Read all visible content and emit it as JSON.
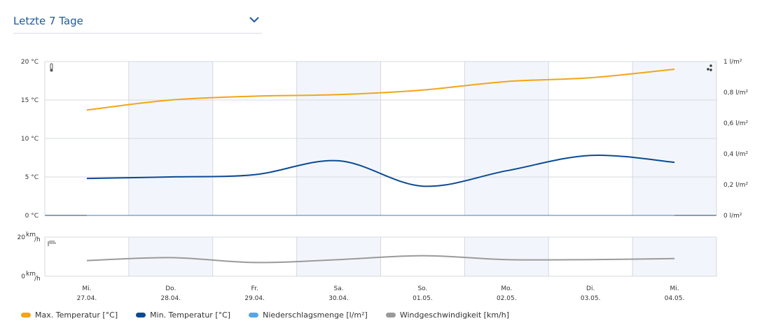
{
  "period_selector": {
    "label": "Letzte 7 Tage",
    "icon": "chevron-down-icon"
  },
  "colors": {
    "max_temp": "#f2a517",
    "min_temp": "#0b4a93",
    "precip": "#58a6e6",
    "wind": "#9a9a9a",
    "band": "#f2f6fc",
    "grid": "#d5d8dd",
    "zero_line": "#1f3c66"
  },
  "icons": {
    "temperature": "thermometer-icon",
    "precipitation": "raindrops-icon",
    "wind": "wind-icon"
  },
  "chart_data": {
    "type": "line",
    "categories": [
      "Mi.|27.04.",
      "Do.|28.04.",
      "Fr.|29.04.",
      "Sa.|30.04.",
      "So.|01.05.",
      "Mo.|02.05.",
      "Di.|03.05.",
      "Mi.|04.05."
    ],
    "x_ticks": [
      {
        "day": "Mi.",
        "date": "27.04."
      },
      {
        "day": "Do.",
        "date": "28.04."
      },
      {
        "day": "Fr.",
        "date": "29.04."
      },
      {
        "day": "Sa.",
        "date": "30.04."
      },
      {
        "day": "So.",
        "date": "01.05."
      },
      {
        "day": "Mo.",
        "date": "02.05."
      },
      {
        "day": "Di.",
        "date": "03.05."
      },
      {
        "day": "Mi.",
        "date": "04.05."
      }
    ],
    "temperature_axis": {
      "ylim": [
        0,
        20
      ],
      "ticks": [
        "0 °C",
        "5 °C",
        "10 °C",
        "15 °C",
        "20 °C"
      ]
    },
    "precipitation_axis": {
      "ylim": [
        0,
        1
      ],
      "ticks": [
        "0 l/m²",
        "0,2 l/m²",
        "0,4 l/m²",
        "0,6 l/m²",
        "0,8 l/m²",
        "1 l/m²"
      ]
    },
    "wind_axis": {
      "ylim": [
        0,
        20
      ],
      "unit": "km/h",
      "ticks": [
        "0",
        "20"
      ]
    },
    "series": [
      {
        "name": "Max. Temperatur [°C]",
        "axis": "temperature",
        "values": [
          13.7,
          15.0,
          15.5,
          15.7,
          16.3,
          17.4,
          17.9,
          19.0
        ]
      },
      {
        "name": "Min. Temperatur [°C]",
        "axis": "temperature",
        "values": [
          4.8,
          5.0,
          5.3,
          7.1,
          3.8,
          5.8,
          7.8,
          6.9
        ]
      },
      {
        "name": "Niederschlagsmenge [l/m²]",
        "axis": "precipitation",
        "values": [
          0,
          0,
          0,
          0,
          0,
          0,
          0,
          0
        ]
      },
      {
        "name": "Windgeschwindigkeit [km/h]",
        "axis": "wind",
        "values": [
          8,
          9.5,
          7,
          8.5,
          10.5,
          8.5,
          8.5,
          9
        ]
      }
    ],
    "grid": true,
    "legend_position": "bottom-left"
  },
  "legend": [
    {
      "label": "Max. Temperatur [°C]",
      "color": "#f2a517"
    },
    {
      "label": "Min. Temperatur [°C]",
      "color": "#0b4a93"
    },
    {
      "label": "Niederschlagsmenge [l/m²]",
      "color": "#58a6e6"
    },
    {
      "label": "Windgeschwindigkeit [km/h]",
      "color": "#9a9a9a"
    }
  ]
}
